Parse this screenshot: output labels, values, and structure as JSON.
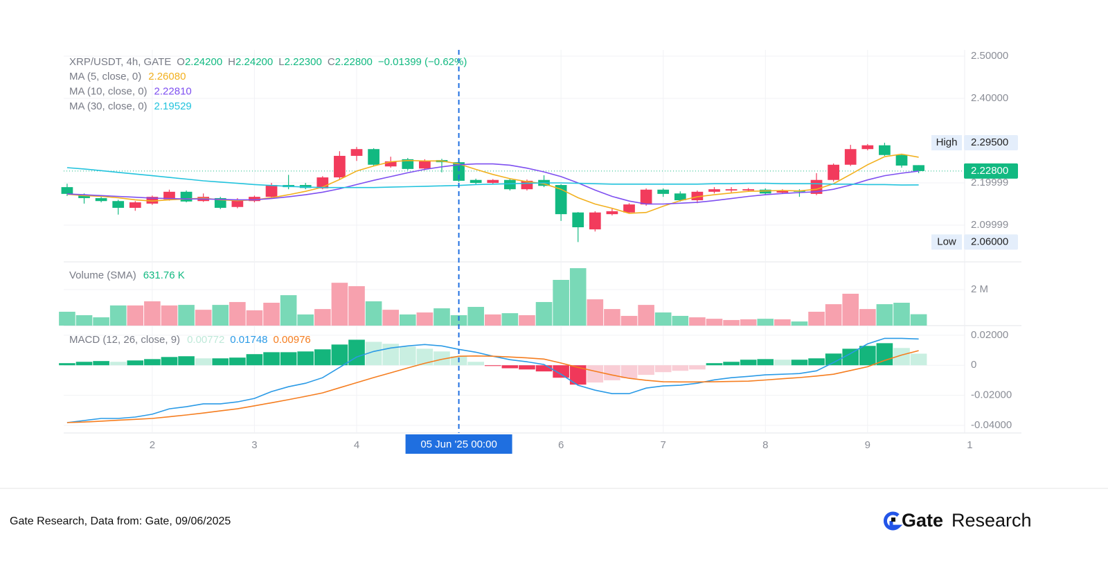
{
  "chart_data": {
    "type": "candlestick",
    "title": "XRP/USDT, 4h, GATE",
    "ohlc_legend": [
      {
        "key": "O",
        "value": "2.24200"
      },
      {
        "key": "H",
        "value": "2.24200"
      },
      {
        "key": "L",
        "value": "2.22300"
      },
      {
        "key": "C",
        "value": "2.22800"
      }
    ],
    "change_label": "−0.01399 (−0.62%)",
    "up_color": "#f23b5c",
    "down_color": "#12b981",
    "xlim": [
      -0.2,
      52.7
    ],
    "xticks": [
      {
        "value": 5,
        "label": "2"
      },
      {
        "value": 11,
        "label": "3"
      },
      {
        "value": 17,
        "label": "4"
      },
      {
        "value": 29,
        "label": "6"
      },
      {
        "value": 35,
        "label": "7"
      },
      {
        "value": 41,
        "label": "8"
      },
      {
        "value": 47,
        "label": "9"
      },
      {
        "value": 53,
        "label": "1"
      }
    ],
    "crosshair": {
      "x": 23,
      "label": "05 Jun '25 00:00",
      "color": "#1f6fe0"
    },
    "grid": true,
    "ylim": [
      2.0131,
      2.5148
    ],
    "yticks": [
      {
        "value": 2.5,
        "label": "2.50000"
      },
      {
        "value": 2.4,
        "label": "2.40000"
      },
      {
        "value": 2.19999,
        "label": "2.19999"
      },
      {
        "value": 2.09999,
        "label": "2.09999"
      }
    ],
    "high_marker": {
      "label": "High",
      "value": 2.295,
      "value_label": "2.29500"
    },
    "low_marker": {
      "label": "Low",
      "value": 2.06,
      "value_label": "2.06000"
    },
    "last_price": {
      "value": 2.228,
      "value_label": "2.22800"
    },
    "open": [
      2.19,
      2.172,
      2.164,
      2.157,
      2.141,
      2.151,
      2.161,
      2.179,
      2.157,
      2.164,
      2.143,
      2.157,
      2.167,
      2.195,
      2.195,
      2.187,
      2.213,
      2.264,
      2.28,
      2.239,
      2.256,
      2.234,
      2.254,
      2.249,
      2.207,
      2.2,
      2.207,
      2.185,
      2.207,
      2.195,
      2.13,
      2.09,
      2.126,
      2.13,
      2.149,
      2.184,
      2.175,
      2.159,
      2.179,
      2.182,
      2.182,
      2.184,
      2.177,
      2.182,
      2.174,
      2.207,
      2.243,
      2.28,
      2.289,
      2.266,
      2.242
    ],
    "high": [
      2.198,
      2.175,
      2.167,
      2.16,
      2.157,
      2.17,
      2.184,
      2.182,
      2.175,
      2.167,
      2.164,
      2.17,
      2.2,
      2.219,
      2.2,
      2.216,
      2.275,
      2.285,
      2.282,
      2.262,
      2.259,
      2.256,
      2.257,
      2.251,
      2.21,
      2.209,
      2.21,
      2.208,
      2.218,
      2.197,
      2.131,
      2.133,
      2.139,
      2.152,
      2.187,
      2.187,
      2.18,
      2.182,
      2.19,
      2.19,
      2.188,
      2.187,
      2.185,
      2.185,
      2.223,
      2.246,
      2.29,
      2.292,
      2.295,
      2.267,
      2.242
    ],
    "low": [
      2.169,
      2.151,
      2.154,
      2.125,
      2.134,
      2.148,
      2.158,
      2.154,
      2.155,
      2.138,
      2.14,
      2.154,
      2.164,
      2.185,
      2.185,
      2.185,
      2.208,
      2.252,
      2.24,
      2.236,
      2.23,
      2.23,
      2.225,
      2.202,
      2.197,
      2.197,
      2.182,
      2.182,
      2.19,
      2.11,
      2.06,
      2.085,
      2.123,
      2.128,
      2.146,
      2.167,
      2.156,
      2.152,
      2.175,
      2.177,
      2.18,
      2.172,
      2.175,
      2.167,
      2.171,
      2.203,
      2.24,
      2.277,
      2.264,
      2.236,
      2.223
    ],
    "close": [
      2.174,
      2.164,
      2.157,
      2.141,
      2.154,
      2.167,
      2.179,
      2.156,
      2.167,
      2.141,
      2.159,
      2.167,
      2.195,
      2.19,
      2.188,
      2.213,
      2.264,
      2.28,
      2.243,
      2.251,
      2.233,
      2.251,
      2.249,
      2.205,
      2.2,
      2.207,
      2.185,
      2.205,
      2.193,
      2.126,
      2.095,
      2.13,
      2.133,
      2.149,
      2.184,
      2.174,
      2.159,
      2.179,
      2.185,
      2.185,
      2.185,
      2.175,
      2.182,
      2.179,
      2.207,
      2.243,
      2.28,
      2.289,
      2.266,
      2.241,
      2.228
    ],
    "series": [
      {
        "name": "MA (5, close, 0)",
        "color": "#f2b01e",
        "value_label": "2.26080",
        "values": [
          2.173,
          2.17,
          2.168,
          2.165,
          2.16,
          2.157,
          2.16,
          2.162,
          2.164,
          2.16,
          2.158,
          2.16,
          2.165,
          2.172,
          2.18,
          2.19,
          2.208,
          2.228,
          2.24,
          2.25,
          2.253,
          2.252,
          2.252,
          2.245,
          2.232,
          2.22,
          2.21,
          2.203,
          2.198,
          2.185,
          2.165,
          2.15,
          2.14,
          2.128,
          2.13,
          2.145,
          2.158,
          2.167,
          2.172,
          2.176,
          2.18,
          2.181,
          2.182,
          2.181,
          2.185,
          2.198,
          2.22,
          2.243,
          2.262,
          2.268,
          2.2608
        ]
      },
      {
        "name": "MA (10, close, 0)",
        "color": "#7e4ff0",
        "value_label": "2.22810",
        "values": [
          2.174,
          2.172,
          2.17,
          2.168,
          2.166,
          2.164,
          2.163,
          2.162,
          2.162,
          2.161,
          2.16,
          2.16,
          2.163,
          2.167,
          2.172,
          2.178,
          2.186,
          2.196,
          2.206,
          2.215,
          2.224,
          2.232,
          2.238,
          2.243,
          2.245,
          2.245,
          2.242,
          2.235,
          2.226,
          2.215,
          2.2,
          2.183,
          2.168,
          2.157,
          2.15,
          2.15,
          2.152,
          2.154,
          2.158,
          2.163,
          2.168,
          2.172,
          2.175,
          2.177,
          2.179,
          2.185,
          2.195,
          2.207,
          2.217,
          2.223,
          2.2281
        ]
      },
      {
        "name": "MA (30, close, 0)",
        "color": "#22c3dd",
        "value_label": "2.19529",
        "values": [
          2.236,
          2.233,
          2.229,
          2.225,
          2.221,
          2.217,
          2.213,
          2.209,
          2.205,
          2.202,
          2.199,
          2.196,
          2.194,
          2.192,
          2.19,
          2.189,
          2.189,
          2.189,
          2.189,
          2.19,
          2.191,
          2.192,
          2.193,
          2.194,
          2.196,
          2.197,
          2.198,
          2.199,
          2.2,
          2.2,
          2.199,
          2.198,
          2.197,
          2.197,
          2.197,
          2.197,
          2.197,
          2.197,
          2.198,
          2.198,
          2.199,
          2.199,
          2.198,
          2.198,
          2.198,
          2.197,
          2.197,
          2.196,
          2.196,
          2.195,
          2.19529
        ]
      }
    ],
    "volume": {
      "type": "bar",
      "title": "Volume (SMA)",
      "value_label": "631.76 K",
      "up_color": "#f7a1ae",
      "down_color": "#79d9b7",
      "ylim": [
        0,
        3540000
      ],
      "yticks": [
        {
          "value": 2000000,
          "label": "2 M"
        }
      ],
      "values": [
        770000,
        580000,
        460000,
        1120000,
        1120000,
        1350000,
        1120000,
        1150000,
        880000,
        1150000,
        1310000,
        850000,
        1270000,
        1690000,
        620000,
        920000,
        2380000,
        2190000,
        1350000,
        880000,
        620000,
        730000,
        960000,
        580000,
        1040000,
        620000,
        690000,
        580000,
        1310000,
        2540000,
        3190000,
        1460000,
        920000,
        540000,
        1150000,
        730000,
        540000,
        460000,
        380000,
        310000,
        350000,
        380000,
        350000,
        230000,
        770000,
        1190000,
        1770000,
        920000,
        1190000,
        1270000,
        631760
      ]
    },
    "macd": {
      "type": "macd",
      "title": "MACD (12, 26, close, 9)",
      "ylim": [
        -0.0451,
        0.0264
      ],
      "yticks": [
        {
          "value": 0.02,
          "label": "0.02000"
        },
        0,
        {
          "value": -0.02,
          "label": "-0.02000"
        },
        {
          "value": -0.04,
          "label": "-0.04000"
        }
      ],
      "histogram": {
        "value_label": "0.00772",
        "colors": [
          "#14b57c",
          "#c9efe1",
          "#f0385a",
          "#f9cdd5"
        ],
        "values": [
          0.0014,
          0.0023,
          0.0028,
          0.0023,
          0.0032,
          0.0041,
          0.0055,
          0.006,
          0.0046,
          0.0046,
          0.0051,
          0.0074,
          0.0087,
          0.0087,
          0.0092,
          0.0106,
          0.0138,
          0.017,
          0.0156,
          0.0143,
          0.0124,
          0.011,
          0.0092,
          0.006,
          0.0023,
          -0.0005,
          -0.002,
          -0.0028,
          -0.0041,
          -0.0083,
          -0.0129,
          -0.0115,
          -0.01,
          -0.0087,
          -0.0064,
          -0.0046,
          -0.0037,
          -0.0028,
          0.0014,
          0.0023,
          0.0037,
          0.0041,
          0.0037,
          0.0037,
          0.0046,
          0.0078,
          0.011,
          0.0129,
          0.0147,
          0.0115,
          0.00772
        ]
      },
      "macd_line": {
        "color": "#2a9ae6",
        "value_label": "0.01748",
        "values": [
          -0.0382,
          -0.0368,
          -0.0354,
          -0.0354,
          -0.0345,
          -0.0326,
          -0.029,
          -0.0276,
          -0.0257,
          -0.0257,
          -0.0244,
          -0.0221,
          -0.0175,
          -0.0143,
          -0.012,
          -0.0083,
          -0.0014,
          0.0055,
          0.0092,
          0.0115,
          0.0129,
          0.0138,
          0.0129,
          0.0106,
          0.0087,
          0.006,
          0.0037,
          0.0023,
          0.0005,
          -0.006,
          -0.0133,
          -0.0166,
          -0.0189,
          -0.0189,
          -0.0152,
          -0.0138,
          -0.0133,
          -0.012,
          -0.0097,
          -0.0083,
          -0.0074,
          -0.0064,
          -0.006,
          -0.0055,
          -0.0037,
          0.0018,
          0.0078,
          0.0142,
          0.0179,
          0.0179,
          0.01748
        ]
      },
      "signal_line": {
        "color": "#f57d1f",
        "value_label": "0.00976",
        "values": [
          -0.0382,
          -0.0378,
          -0.0372,
          -0.0366,
          -0.036,
          -0.0354,
          -0.0343,
          -0.0331,
          -0.0318,
          -0.0304,
          -0.029,
          -0.027,
          -0.025,
          -0.0229,
          -0.0207,
          -0.0184,
          -0.015,
          -0.0116,
          -0.0082,
          -0.005,
          -0.0018,
          0.0013,
          0.004,
          0.006,
          0.0062,
          0.006,
          0.0055,
          0.0049,
          0.0041,
          0.0015,
          -0.0014,
          -0.004,
          -0.0065,
          -0.0087,
          -0.01,
          -0.011,
          -0.0111,
          -0.0111,
          -0.011,
          -0.0108,
          -0.0106,
          -0.0098,
          -0.009,
          -0.0082,
          -0.0072,
          -0.006,
          -0.0035,
          -0.001,
          0.0032,
          0.0068,
          0.00976
        ]
      }
    }
  },
  "footer": {
    "source": "Gate Research, Data from: Gate, 09/06/2025",
    "brand": "Gate",
    "brand_suffix": "Research"
  }
}
